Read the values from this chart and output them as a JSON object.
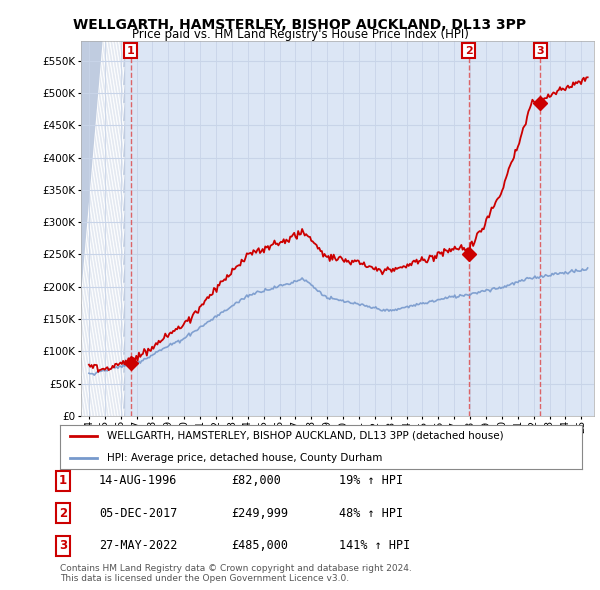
{
  "title": "WELLGARTH, HAMSTERLEY, BISHOP AUCKLAND, DL13 3PP",
  "subtitle": "Price paid vs. HM Land Registry's House Price Index (HPI)",
  "ylim": [
    0,
    580000
  ],
  "yticks": [
    0,
    50000,
    100000,
    150000,
    200000,
    250000,
    300000,
    350000,
    400000,
    450000,
    500000,
    550000
  ],
  "xlim_start": 1993.5,
  "xlim_end": 2025.8,
  "sale_dates": [
    1996.62,
    2017.92,
    2022.41
  ],
  "sale_prices": [
    82000,
    249999,
    485000
  ],
  "sale_labels": [
    "1",
    "2",
    "3"
  ],
  "red_line_color": "#cc0000",
  "blue_line_color": "#7799cc",
  "marker_color": "#cc0000",
  "dashed_color": "#dd4444",
  "background_color": "#ffffff",
  "plot_bg_color": "#dce6f5",
  "grid_color": "#c8d4e8",
  "hatch_strip_color": "#c0cce0",
  "legend_label_red": "WELLGARTH, HAMSTERLEY, BISHOP AUCKLAND, DL13 3PP (detached house)",
  "legend_label_blue": "HPI: Average price, detached house, County Durham",
  "table_entries": [
    {
      "num": "1",
      "date": "14-AUG-1996",
      "price": "£82,000",
      "change": "19% ↑ HPI"
    },
    {
      "num": "2",
      "date": "05-DEC-2017",
      "price": "£249,999",
      "change": "48% ↑ HPI"
    },
    {
      "num": "3",
      "date": "27-MAY-2022",
      "price": "£485,000",
      "change": "141% ↑ HPI"
    }
  ],
  "footer": "Contains HM Land Registry data © Crown copyright and database right 2024.\nThis data is licensed under the Open Government Licence v3.0."
}
